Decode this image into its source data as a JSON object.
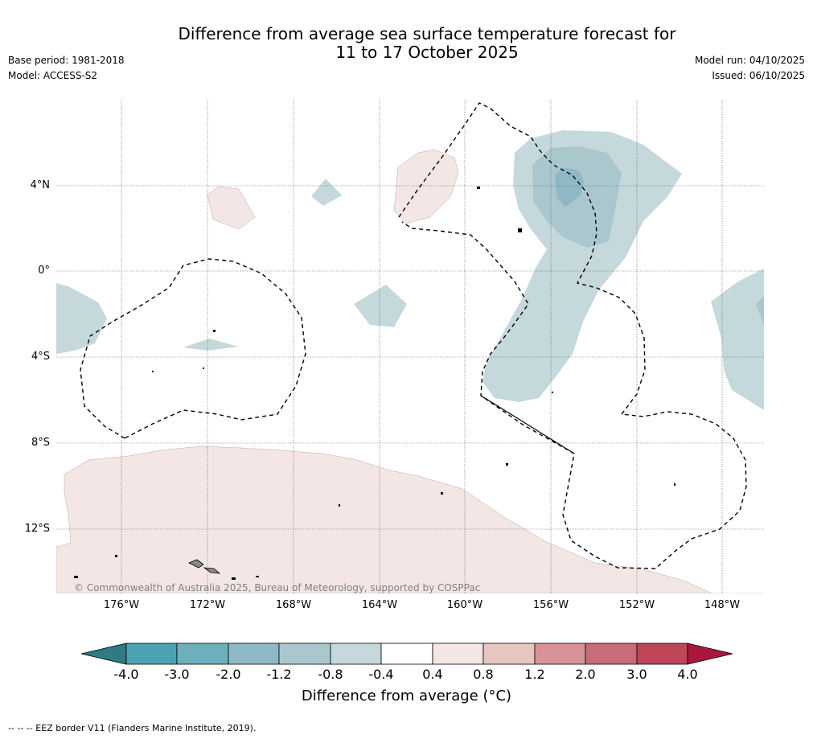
{
  "title": {
    "line1": "Difference from average sea surface temperature forecast for",
    "line2": "11 to 17 October 2025"
  },
  "meta_left": {
    "base_period": "Base period: 1981-2018",
    "model": "Model: ACCESS-S2"
  },
  "meta_right": {
    "model_run": "Model run: 04/10/2025",
    "issued": "Issued: 06/10/2025"
  },
  "lat_labels": [
    "4°N",
    "0°",
    "4°S",
    "8°S",
    "12°S"
  ],
  "lon_labels": [
    "176°W",
    "172°W",
    "168°W",
    "164°W",
    "160°W",
    "156°W",
    "152°W",
    "148°W"
  ],
  "copyright": "© Commonwealth of Australia 2025, Bureau of Meteorology, supported by COSPPac",
  "colorbar": {
    "ticks": [
      "-4.0",
      "-3.0",
      "-2.0",
      "-1.2",
      "-0.8",
      "-0.4",
      "0.4",
      "0.8",
      "1.2",
      "2.0",
      "3.0",
      "4.0"
    ],
    "colors": [
      "#2e7a85",
      "#4aa3b3",
      "#6eafbd",
      "#8fb8c6",
      "#aac7ce",
      "#c5d8dc",
      "#ffffff",
      "#f3e6e4",
      "#e7c6c2",
      "#d89299",
      "#c96b78",
      "#bf4658",
      "#a8183a"
    ],
    "label": "Difference from average (°C)"
  },
  "footer": "--  --  -- EEZ border V11 (Flanders Marine Institute, 2019)."
}
